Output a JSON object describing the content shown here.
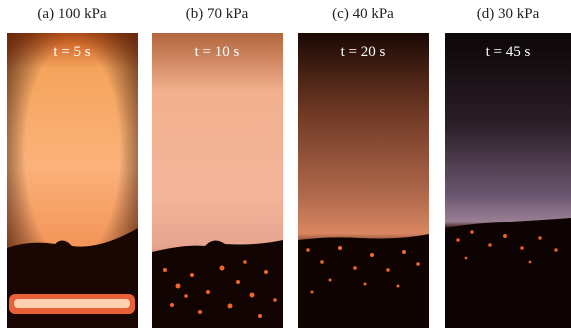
{
  "panels": [
    {
      "label": "(a) 100 kPa",
      "time": "t = 5 s"
    },
    {
      "label": "(b) 70 kPa",
      "time": "t = 10 s"
    },
    {
      "label": "(c) 40 kPa",
      "time": "t = 20 s"
    },
    {
      "label": "(d) 30 kPa",
      "time": "t = 45 s"
    }
  ]
}
